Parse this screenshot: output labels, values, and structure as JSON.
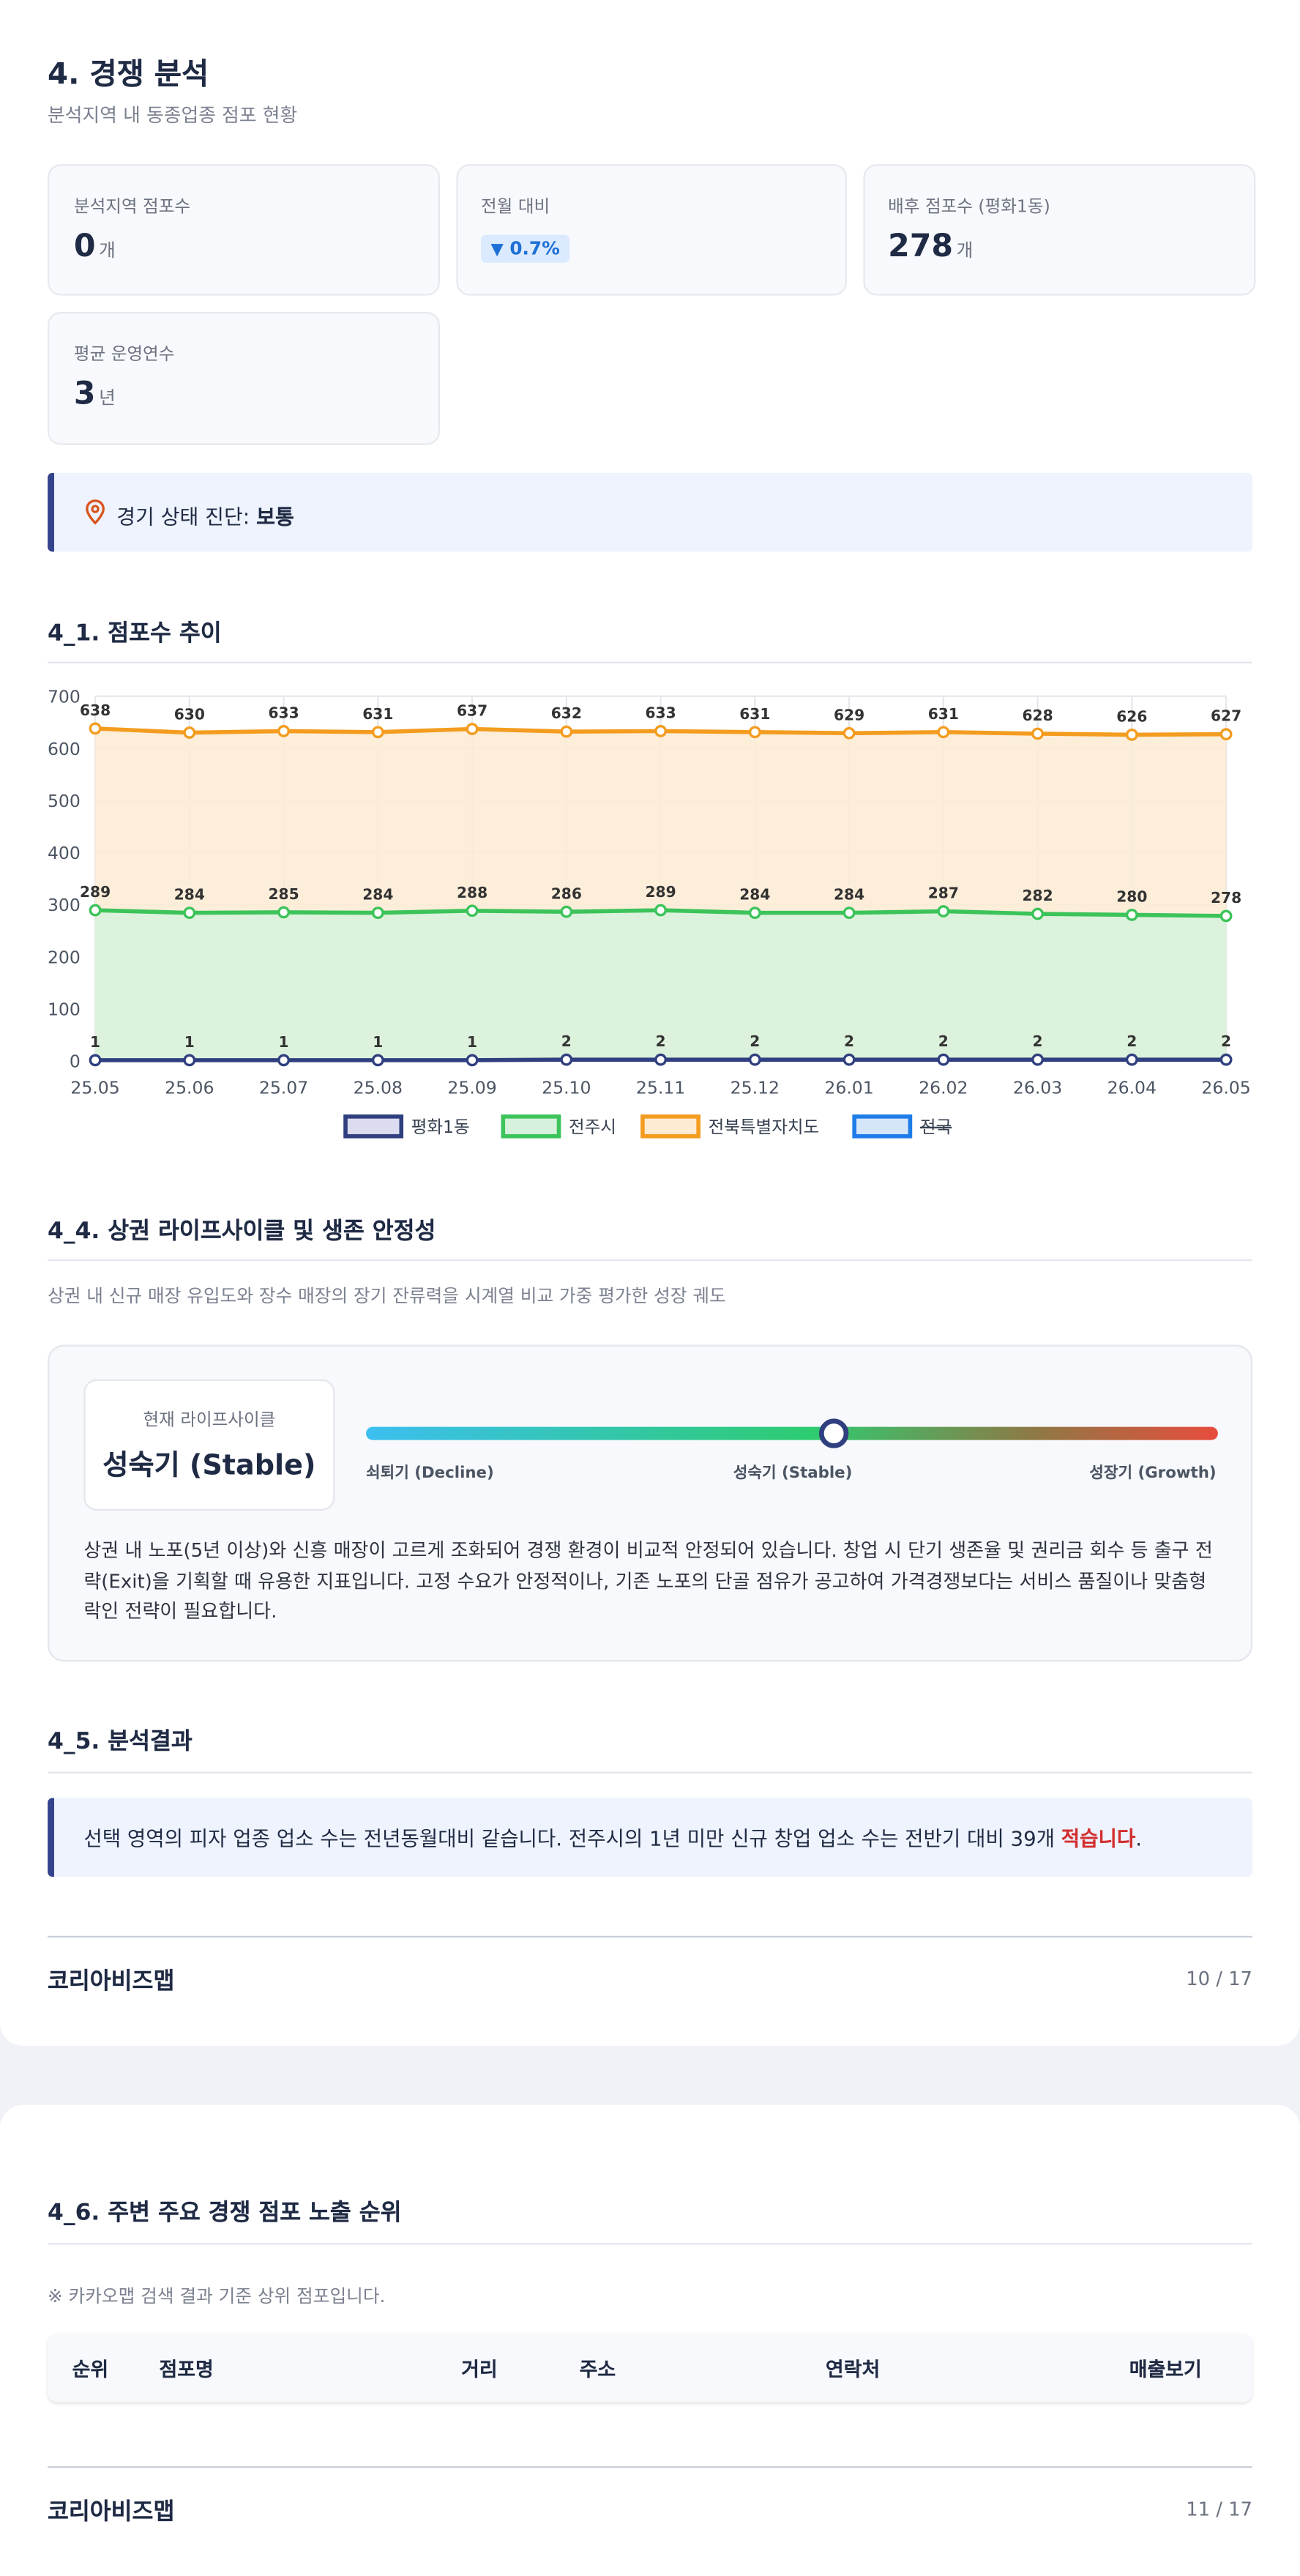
{
  "header": {
    "title": "4. 경쟁 분석",
    "subtitle": "분석지역 내 동종업종 점포 현황"
  },
  "stats": [
    {
      "label": "분석지역 점포수",
      "value": "0",
      "unit": "개"
    },
    {
      "label": "전월 대비",
      "value": "0.7%"
    },
    {
      "label": "배후 점포수 (평화1동)",
      "value": "278",
      "unit": "개"
    },
    {
      "label": "평균 운영연수",
      "value": "3",
      "unit": "년"
    }
  ],
  "diagnosis": {
    "label": "경기 상태 진단:",
    "value": "보통"
  },
  "chart_data": {
    "type": "line",
    "title": "4_1. 점포수 추이",
    "categories": [
      "25.05",
      "25.06",
      "25.07",
      "25.08",
      "25.09",
      "25.10",
      "25.11",
      "25.12",
      "26.01",
      "26.02",
      "26.03",
      "26.04",
      "26.05"
    ],
    "series": [
      {
        "name": "평화1동",
        "color": "#2f3f7f",
        "fill": "#dcdcf0",
        "values": [
          1,
          1,
          1,
          1,
          1,
          2,
          2,
          2,
          2,
          2,
          2,
          2,
          2
        ]
      },
      {
        "name": "전주시",
        "color": "#3cc35a",
        "fill": "#d7f2dc",
        "values": [
          289,
          284,
          285,
          284,
          288,
          286,
          289,
          284,
          284,
          287,
          282,
          280,
          278
        ]
      },
      {
        "name": "전북특별자치도",
        "color": "#f39c1f",
        "fill": "#fdebd3",
        "values": [
          638,
          630,
          633,
          631,
          637,
          632,
          633,
          631,
          629,
          631,
          628,
          626,
          627
        ]
      },
      {
        "name": "전국",
        "color": "#1e7ce8",
        "fill": "#d5e6fb",
        "hidden": true,
        "values": [
          null,
          null,
          null,
          null,
          null,
          null,
          null,
          null,
          null,
          null,
          null,
          null,
          null
        ]
      }
    ],
    "ylim": [
      0,
      700
    ],
    "yticks": [
      0,
      100,
      200,
      300,
      400,
      500,
      600,
      700
    ],
    "grid": true,
    "legend": "bottom"
  },
  "lifecycle": {
    "title": "4_4. 상권 라이프사이클 및 생존 안정성",
    "description": "상권 내 신규 매장 유입도와 장수 매장의 장기 잔류력을 시계열 비교 가중 평가한 성장 궤도",
    "current_label": "현재 라이프사이클",
    "current": "성숙기 (Stable)",
    "stages": [
      "쇠퇴기 (Decline)",
      "성숙기 (Stable)",
      "성장기 (Growth)"
    ],
    "text": "상권 내 노포(5년 이상)와 신흥 매장이 고르게 조화되어 경쟁 환경이 비교적 안정되어 있습니다. 창업 시 단기 생존율 및 권리금 회수 등 출구 전략(Exit)을 기획할 때 유용한 지표입니다. 고정 수요가 안정적이나, 기존 노포의 단골 점유가 공고하여 가격경쟁보다는 서비스 품질이나 맞춤형 락인 전략이 필요합니다."
  },
  "result": {
    "title": "4_5. 분석결과",
    "text": "선택 영역의 피자 업종 업소 수는 전년동월대비 같습니다. 전주시의 1년 미만 신규 창업 업소 수는 전반기 대비 39개 ",
    "emphasis": "적습니다",
    "text_end": "."
  },
  "ranking": {
    "title": "4_6. 주변 주요 경쟁 점포 노출 순위",
    "note": "※ 카카오맵 검색 결과 기준 상위 점포입니다.",
    "columns": [
      "순위",
      "점포명",
      "거리",
      "주소",
      "연락처",
      "매출보기"
    ]
  },
  "footers": [
    {
      "brand": "코리아비즈맵",
      "page": "10 / 17"
    },
    {
      "brand": "코리아비즈맵",
      "page": "11 / 17"
    }
  ]
}
